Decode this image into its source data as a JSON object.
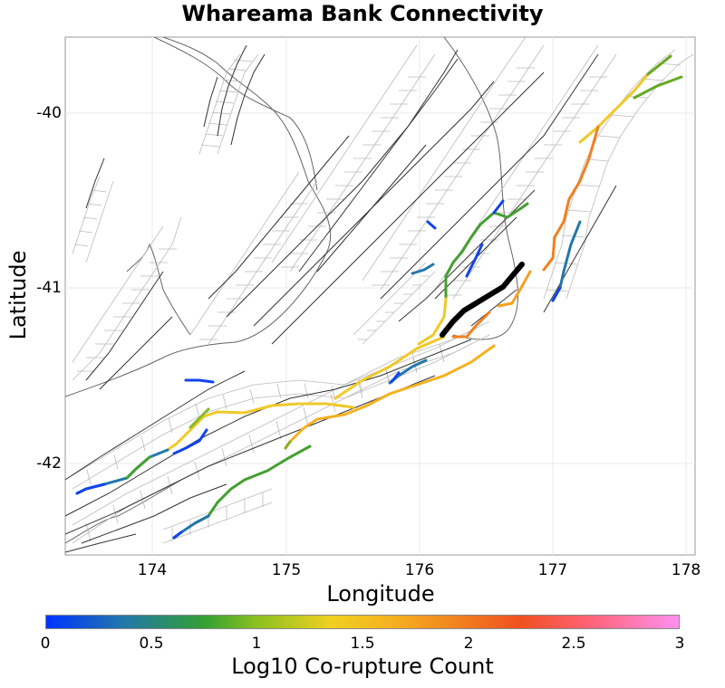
{
  "title": "Whareama Bank Connectivity",
  "axes": {
    "xlabel": "Longitude",
    "ylabel": "Latitude",
    "xticks": [
      "174",
      "175",
      "176",
      "177",
      "178"
    ],
    "yticks": [
      "-40",
      "-41",
      "-42"
    ]
  },
  "colorbar": {
    "label": "Log10 Co-rupture Count",
    "ticks": [
      "0",
      "0.5",
      "1",
      "1.5",
      "2",
      "2.5",
      "3"
    ],
    "colors": [
      "#0033ff",
      "#2277aa",
      "#33a033",
      "#f0d020",
      "#f07820",
      "#ff90ee"
    ]
  },
  "highlight_color": "#000000"
}
